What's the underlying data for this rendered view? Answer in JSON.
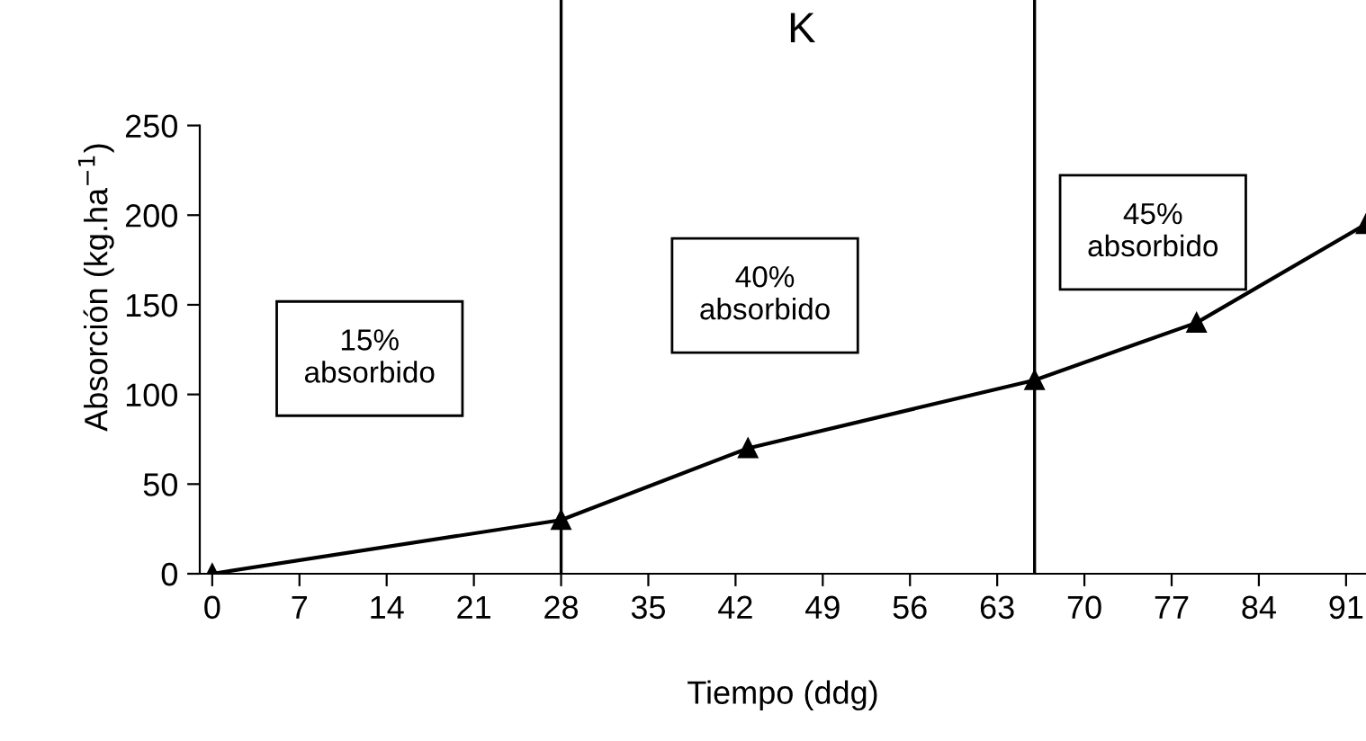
{
  "chart_data": {
    "type": "line",
    "title": "K",
    "xlabel": "Tiempo (ddg)",
    "ylabel": "Absorción (kg.ha$^{−1}$)",
    "x": [
      0,
      28,
      43,
      66,
      79,
      92.6
    ],
    "series": [
      {
        "color": "#000000",
        "values": [
          0,
          30,
          70,
          108,
          140,
          195
        ]
      }
    ],
    "marker": "triangle",
    "line_style": "solid",
    "xlim": [
      -1,
      92.6
    ],
    "ylim": [
      0,
      320
    ],
    "xticks": [
      0,
      7,
      14,
      21,
      28,
      35,
      42,
      49,
      56,
      63,
      70,
      77,
      84,
      91
    ],
    "yticks": [
      0,
      50,
      100,
      150,
      200,
      250
    ],
    "ref_lines": [
      {
        "axis": "x",
        "value": 28,
        "color": "#000000"
      },
      {
        "axis": "x",
        "value": 66,
        "color": "#000000"
      }
    ],
    "annotations": [
      "15%\nabsorbido",
      "40%\nabsorbido",
      "45%\nabsorbido"
    ],
    "grid": false,
    "legend": false
  }
}
